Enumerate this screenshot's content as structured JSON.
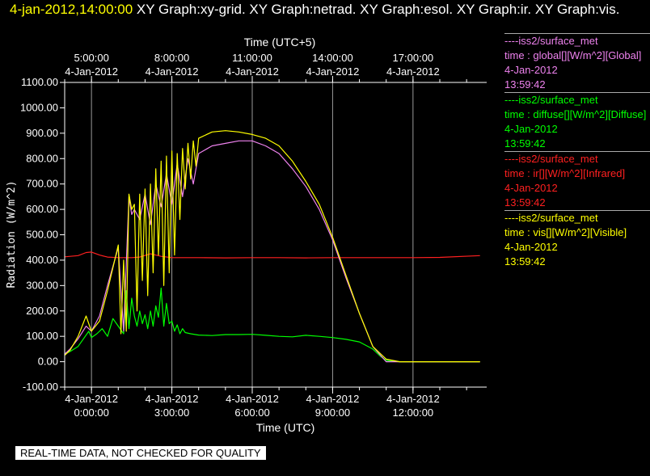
{
  "header": {
    "timestamp": "4-jan-2012,14:00:00",
    "title": " XY Graph:xy-grid.  XY Graph:netrad.  XY Graph:esol.  XY Graph:ir.  XY Graph:vis."
  },
  "note": "REAL-TIME DATA, NOT CHECKED FOR QUALITY",
  "legend": [
    {
      "source": "----iss2/surface_met",
      "desc": "time : global[][W/m^2][Global]",
      "date": "4-Jan-2012",
      "time": "13:59:42",
      "color": "#ee82ee"
    },
    {
      "source": "----iss2/surface_met",
      "desc": "time : diffuse[][W/m^2][Diffuse]",
      "date": "4-Jan-2012",
      "time": "13:59:42",
      "color": "#00ff00"
    },
    {
      "source": "----iss2/surface_met",
      "desc": "time : ir[][W/m^2][Infrared]",
      "date": "4-Jan-2012",
      "time": "13:59:42",
      "color": "#ff2020"
    },
    {
      "source": "----iss2/surface_met",
      "desc": "time : vis[][W/m^2][Visible]",
      "date": "4-Jan-2012",
      "time": "13:59:42",
      "color": "#ffff00"
    }
  ],
  "chart_data": {
    "type": "line",
    "xlabel": "Time (UTC)",
    "x2label": "Time (UTC+5)",
    "ylabel": "Radiation (W/m^2)",
    "xlim": [
      -1.0,
      14.75
    ],
    "ylim": [
      -100,
      1100
    ],
    "yticks": [
      -100,
      0,
      100,
      200,
      300,
      400,
      500,
      600,
      700,
      800,
      900,
      1000,
      1100
    ],
    "yticklabels": [
      "-100.00",
      "0.00",
      "100.00",
      "200.00",
      "300.00",
      "400.00",
      "500.00",
      "600.00",
      "700.00",
      "800.00",
      "900.00",
      "1000.00",
      "1100.00"
    ],
    "xticks": [
      0,
      3,
      6,
      9,
      12
    ],
    "xticklabels_date": [
      "4-Jan-2012",
      "4-Jan-2012",
      "4-Jan-2012",
      "4-Jan-2012",
      "4-Jan-2012"
    ],
    "xticklabels_time": [
      "0:00:00",
      "3:00:00",
      "6:00:00",
      "9:00:00",
      "12:00:00"
    ],
    "x2ticklabels_time": [
      "5:00:00",
      "8:00:00",
      "11:00:00",
      "14:00:00",
      "17:00:00"
    ],
    "x2ticklabels_date": [
      "4-Jan-2012",
      "4-Jan-2012",
      "4-Jan-2012",
      "4-Jan-2012",
      "4-Jan-2012"
    ],
    "grid": "vertical",
    "series": [
      {
        "name": "ir",
        "color": "#ff2020",
        "x": [
          -1.0,
          -0.5,
          -0.2,
          0.0,
          0.3,
          0.6,
          1.0,
          1.5,
          1.8,
          2.2,
          2.6,
          3.0,
          4,
          5,
          6,
          7,
          8,
          9,
          10,
          11,
          12,
          13,
          14.5
        ],
        "y": [
          413,
          418,
          430,
          432,
          420,
          412,
          410,
          410,
          412,
          425,
          415,
          410,
          410,
          409,
          410,
          410,
          409,
          410,
          410,
          410,
          410,
          411,
          418
        ]
      },
      {
        "name": "diffuse",
        "color": "#00ff00",
        "x": [
          -1.0,
          -0.8,
          -0.5,
          -0.3,
          -0.1,
          0.0,
          0.2,
          0.4,
          0.6,
          0.8,
          1.0,
          1.2,
          1.3,
          1.4,
          1.5,
          1.6,
          1.7,
          1.8,
          1.9,
          2.0,
          2.1,
          2.2,
          2.3,
          2.4,
          2.5,
          2.6,
          2.7,
          2.8,
          2.9,
          3.0,
          3.1,
          3.2,
          3.3,
          3.4,
          3.5,
          3.7,
          4.0,
          4.5,
          5.0,
          5.5,
          6.0,
          6.5,
          7.0,
          7.5,
          8.0,
          8.5,
          9.0,
          9.5,
          10.0,
          10.5,
          10.8,
          11.0,
          11.5,
          12,
          13,
          14.5
        ],
        "y": [
          30,
          40,
          60,
          90,
          120,
          95,
          110,
          130,
          100,
          170,
          140,
          110,
          280,
          130,
          250,
          180,
          140,
          200,
          150,
          185,
          130,
          200,
          140,
          220,
          175,
          290,
          140,
          230,
          150,
          160,
          120,
          145,
          110,
          130,
          115,
          110,
          105,
          103,
          107,
          107,
          108,
          104,
          100,
          98,
          104,
          100,
          95,
          88,
          78,
          50,
          20,
          5,
          0,
          0,
          0,
          0
        ]
      },
      {
        "name": "global",
        "color": "#ee82ee",
        "x": [
          -1.0,
          -0.8,
          -0.5,
          -0.2,
          0.0,
          0.3,
          0.6,
          1.0,
          1.2,
          1.4,
          1.5,
          1.6,
          1.8,
          2.0,
          2.2,
          2.4,
          2.6,
          2.8,
          3.0,
          3.2,
          3.4,
          3.6,
          3.8,
          4.0,
          4.5,
          5.0,
          5.5,
          6.0,
          6.5,
          7.0,
          7.5,
          8.0,
          8.5,
          9.0,
          9.5,
          10.0,
          10.5,
          11.0,
          11.5,
          12.0,
          13.0,
          14.5
        ],
        "y": [
          30,
          50,
          90,
          140,
          120,
          180,
          300,
          450,
          120,
          650,
          580,
          600,
          560,
          660,
          540,
          700,
          610,
          740,
          620,
          780,
          650,
          800,
          700,
          820,
          850,
          860,
          870,
          870,
          850,
          820,
          760,
          690,
          600,
          480,
          330,
          190,
          60,
          0,
          0,
          0,
          0,
          0
        ]
      },
      {
        "name": "vis",
        "color": "#ffff00",
        "x": [
          -1.0,
          -0.8,
          -0.5,
          -0.2,
          0.0,
          0.3,
          0.6,
          1.0,
          1.1,
          1.2,
          1.3,
          1.4,
          1.5,
          1.6,
          1.7,
          1.8,
          1.9,
          2.0,
          2.1,
          2.2,
          2.3,
          2.4,
          2.5,
          2.6,
          2.7,
          2.8,
          2.9,
          3.0,
          3.1,
          3.2,
          3.3,
          3.4,
          3.5,
          3.6,
          3.7,
          3.8,
          3.9,
          4.0,
          4.5,
          5.0,
          5.5,
          6.0,
          6.5,
          7.0,
          7.5,
          8.0,
          8.5,
          9.0,
          9.5,
          10.0,
          10.5,
          11.0,
          11.5,
          12.0,
          13.0,
          14.5
        ],
        "y": [
          25,
          45,
          100,
          180,
          120,
          160,
          280,
          460,
          110,
          400,
          120,
          660,
          600,
          620,
          200,
          660,
          320,
          680,
          260,
          700,
          350,
          760,
          420,
          790,
          300,
          810,
          350,
          830,
          420,
          820,
          560,
          840,
          680,
          860,
          720,
          870,
          770,
          880,
          905,
          910,
          905,
          895,
          880,
          850,
          790,
          710,
          620,
          490,
          340,
          190,
          60,
          10,
          0,
          0,
          0,
          0
        ]
      }
    ]
  }
}
